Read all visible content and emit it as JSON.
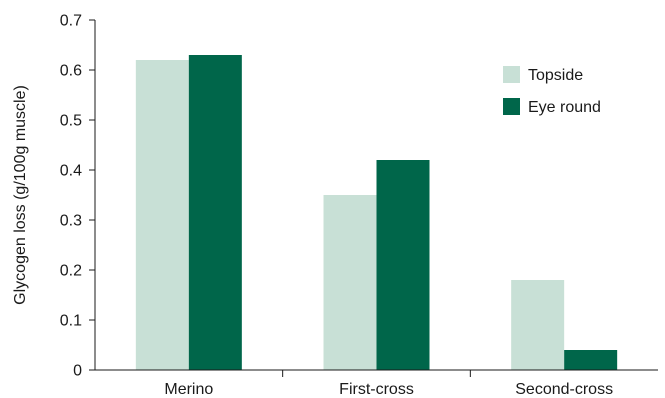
{
  "chart_data": {
    "type": "bar",
    "title": "",
    "xlabel": "",
    "ylabel": "Glycogen loss (g/100g muscle)",
    "ylim": [
      0,
      0.7
    ],
    "yticks": [
      "0",
      "0.1",
      "0.2",
      "0.3",
      "0.4",
      "0.5",
      "0.6",
      "0.7"
    ],
    "grid": false,
    "legend_position": "top-right",
    "categories": [
      "Merino",
      "First-cross",
      "Second-cross"
    ],
    "series": [
      {
        "name": "Topside",
        "color": "#c8e0d6",
        "values": [
          0.62,
          0.35,
          0.18
        ]
      },
      {
        "name": "Eye round",
        "color": "#00664a",
        "values": [
          0.63,
          0.42,
          0.04
        ]
      }
    ]
  }
}
